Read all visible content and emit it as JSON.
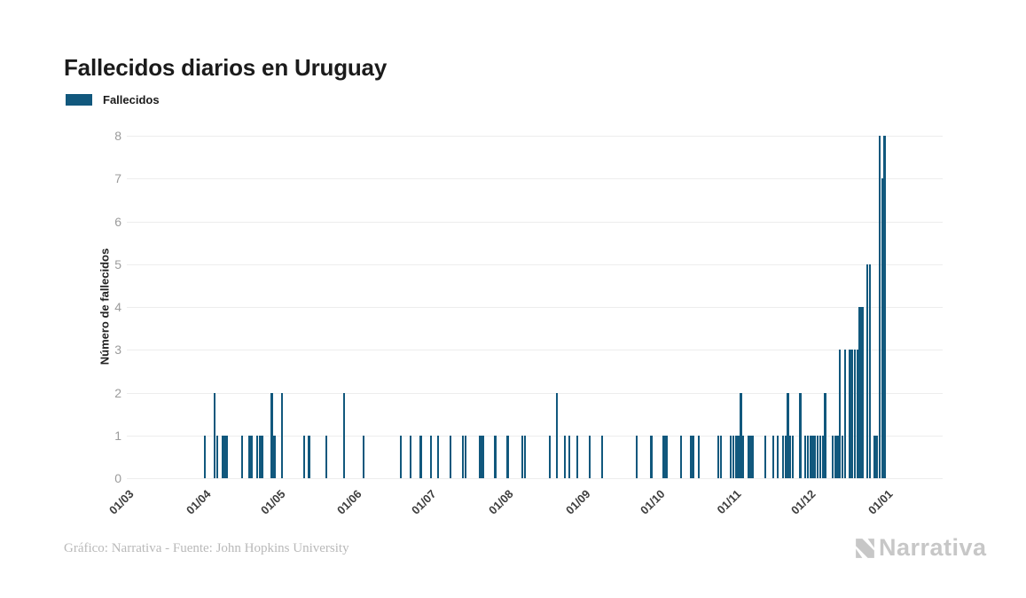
{
  "header": {
    "title": "Fallecidos diarios en Uruguay"
  },
  "legend": {
    "label": "Fallecidos",
    "swatch_color": "#11587d"
  },
  "chart_data": {
    "type": "bar",
    "title": "Fallecidos diarios en Uruguay",
    "xlabel": "",
    "ylabel": "Número de fallecidos",
    "ylim": [
      0,
      8
    ],
    "yticks": [
      0,
      1,
      2,
      3,
      4,
      5,
      6,
      7,
      8
    ],
    "grid": "horizontal",
    "legend_position": "top-left",
    "bar_color": "#11587d",
    "date_format": "DD/MM",
    "x_range": [
      "01/03",
      "01/01"
    ],
    "x_tick_labels": [
      "01/03",
      "01/04",
      "01/05",
      "01/06",
      "01/07",
      "01/08",
      "01/09",
      "01/10",
      "01/11",
      "01/12",
      "01/01"
    ],
    "zero_fill_note": "days between 01/03 and 01/01 not listed below have value 0",
    "points": [
      {
        "date": "01/04",
        "value": 1
      },
      {
        "date": "05/04",
        "value": 2
      },
      {
        "date": "06/04",
        "value": 1
      },
      {
        "date": "08/04",
        "value": 1
      },
      {
        "date": "09/04",
        "value": 1
      },
      {
        "date": "10/04",
        "value": 1
      },
      {
        "date": "16/04",
        "value": 1
      },
      {
        "date": "19/04",
        "value": 1
      },
      {
        "date": "20/04",
        "value": 1
      },
      {
        "date": "22/04",
        "value": 1
      },
      {
        "date": "23/04",
        "value": 1
      },
      {
        "date": "24/04",
        "value": 1
      },
      {
        "date": "28/04",
        "value": 2
      },
      {
        "date": "29/04",
        "value": 1
      },
      {
        "date": "02/05",
        "value": 2
      },
      {
        "date": "11/05",
        "value": 1
      },
      {
        "date": "13/05",
        "value": 1
      },
      {
        "date": "20/05",
        "value": 1
      },
      {
        "date": "27/05",
        "value": 2
      },
      {
        "date": "04/06",
        "value": 1
      },
      {
        "date": "19/06",
        "value": 1
      },
      {
        "date": "23/06",
        "value": 1
      },
      {
        "date": "27/06",
        "value": 1
      },
      {
        "date": "01/07",
        "value": 1
      },
      {
        "date": "04/07",
        "value": 1
      },
      {
        "date": "09/07",
        "value": 1
      },
      {
        "date": "14/07",
        "value": 1
      },
      {
        "date": "15/07",
        "value": 1
      },
      {
        "date": "21/07",
        "value": 1
      },
      {
        "date": "22/07",
        "value": 1
      },
      {
        "date": "27/07",
        "value": 1
      },
      {
        "date": "01/08",
        "value": 1
      },
      {
        "date": "07/08",
        "value": 1
      },
      {
        "date": "08/08",
        "value": 1
      },
      {
        "date": "18/08",
        "value": 1
      },
      {
        "date": "21/08",
        "value": 2
      },
      {
        "date": "24/08",
        "value": 1
      },
      {
        "date": "26/08",
        "value": 1
      },
      {
        "date": "29/08",
        "value": 1
      },
      {
        "date": "03/09",
        "value": 1
      },
      {
        "date": "08/09",
        "value": 1
      },
      {
        "date": "22/09",
        "value": 1
      },
      {
        "date": "28/09",
        "value": 1
      },
      {
        "date": "03/10",
        "value": 1
      },
      {
        "date": "04/10",
        "value": 1
      },
      {
        "date": "10/10",
        "value": 1
      },
      {
        "date": "14/10",
        "value": 1
      },
      {
        "date": "15/10",
        "value": 1
      },
      {
        "date": "17/10",
        "value": 1
      },
      {
        "date": "25/10",
        "value": 1
      },
      {
        "date": "26/10",
        "value": 1
      },
      {
        "date": "30/10",
        "value": 1
      },
      {
        "date": "31/10",
        "value": 1
      },
      {
        "date": "01/11",
        "value": 1
      },
      {
        "date": "02/11",
        "value": 1
      },
      {
        "date": "03/11",
        "value": 2
      },
      {
        "date": "04/11",
        "value": 1
      },
      {
        "date": "06/11",
        "value": 1
      },
      {
        "date": "07/11",
        "value": 1
      },
      {
        "date": "08/11",
        "value": 1
      },
      {
        "date": "13/11",
        "value": 1
      },
      {
        "date": "16/11",
        "value": 1
      },
      {
        "date": "18/11",
        "value": 1
      },
      {
        "date": "20/11",
        "value": 1
      },
      {
        "date": "21/11",
        "value": 1
      },
      {
        "date": "22/11",
        "value": 2
      },
      {
        "date": "23/11",
        "value": 1
      },
      {
        "date": "24/11",
        "value": 1
      },
      {
        "date": "27/11",
        "value": 2
      },
      {
        "date": "29/11",
        "value": 1
      },
      {
        "date": "30/11",
        "value": 1
      },
      {
        "date": "01/12",
        "value": 1
      },
      {
        "date": "02/12",
        "value": 1
      },
      {
        "date": "03/12",
        "value": 1
      },
      {
        "date": "04/12",
        "value": 1
      },
      {
        "date": "05/12",
        "value": 1
      },
      {
        "date": "06/12",
        "value": 1
      },
      {
        "date": "07/12",
        "value": 2
      },
      {
        "date": "10/12",
        "value": 1
      },
      {
        "date": "11/12",
        "value": 1
      },
      {
        "date": "12/12",
        "value": 1
      },
      {
        "date": "13/12",
        "value": 3
      },
      {
        "date": "14/12",
        "value": 1
      },
      {
        "date": "15/12",
        "value": 3
      },
      {
        "date": "17/12",
        "value": 3
      },
      {
        "date": "18/12",
        "value": 3
      },
      {
        "date": "19/12",
        "value": 3
      },
      {
        "date": "20/12",
        "value": 3
      },
      {
        "date": "21/12",
        "value": 4
      },
      {
        "date": "22/12",
        "value": 4
      },
      {
        "date": "24/12",
        "value": 5
      },
      {
        "date": "25/12",
        "value": 5
      },
      {
        "date": "27/12",
        "value": 1
      },
      {
        "date": "28/12",
        "value": 1
      },
      {
        "date": "29/12",
        "value": 8
      },
      {
        "date": "30/12",
        "value": 7
      },
      {
        "date": "31/12",
        "value": 8
      }
    ]
  },
  "footer": {
    "source": "Gráfico: Narrativa - Fuente: John Hopkins University",
    "brand": "Narrativa"
  }
}
